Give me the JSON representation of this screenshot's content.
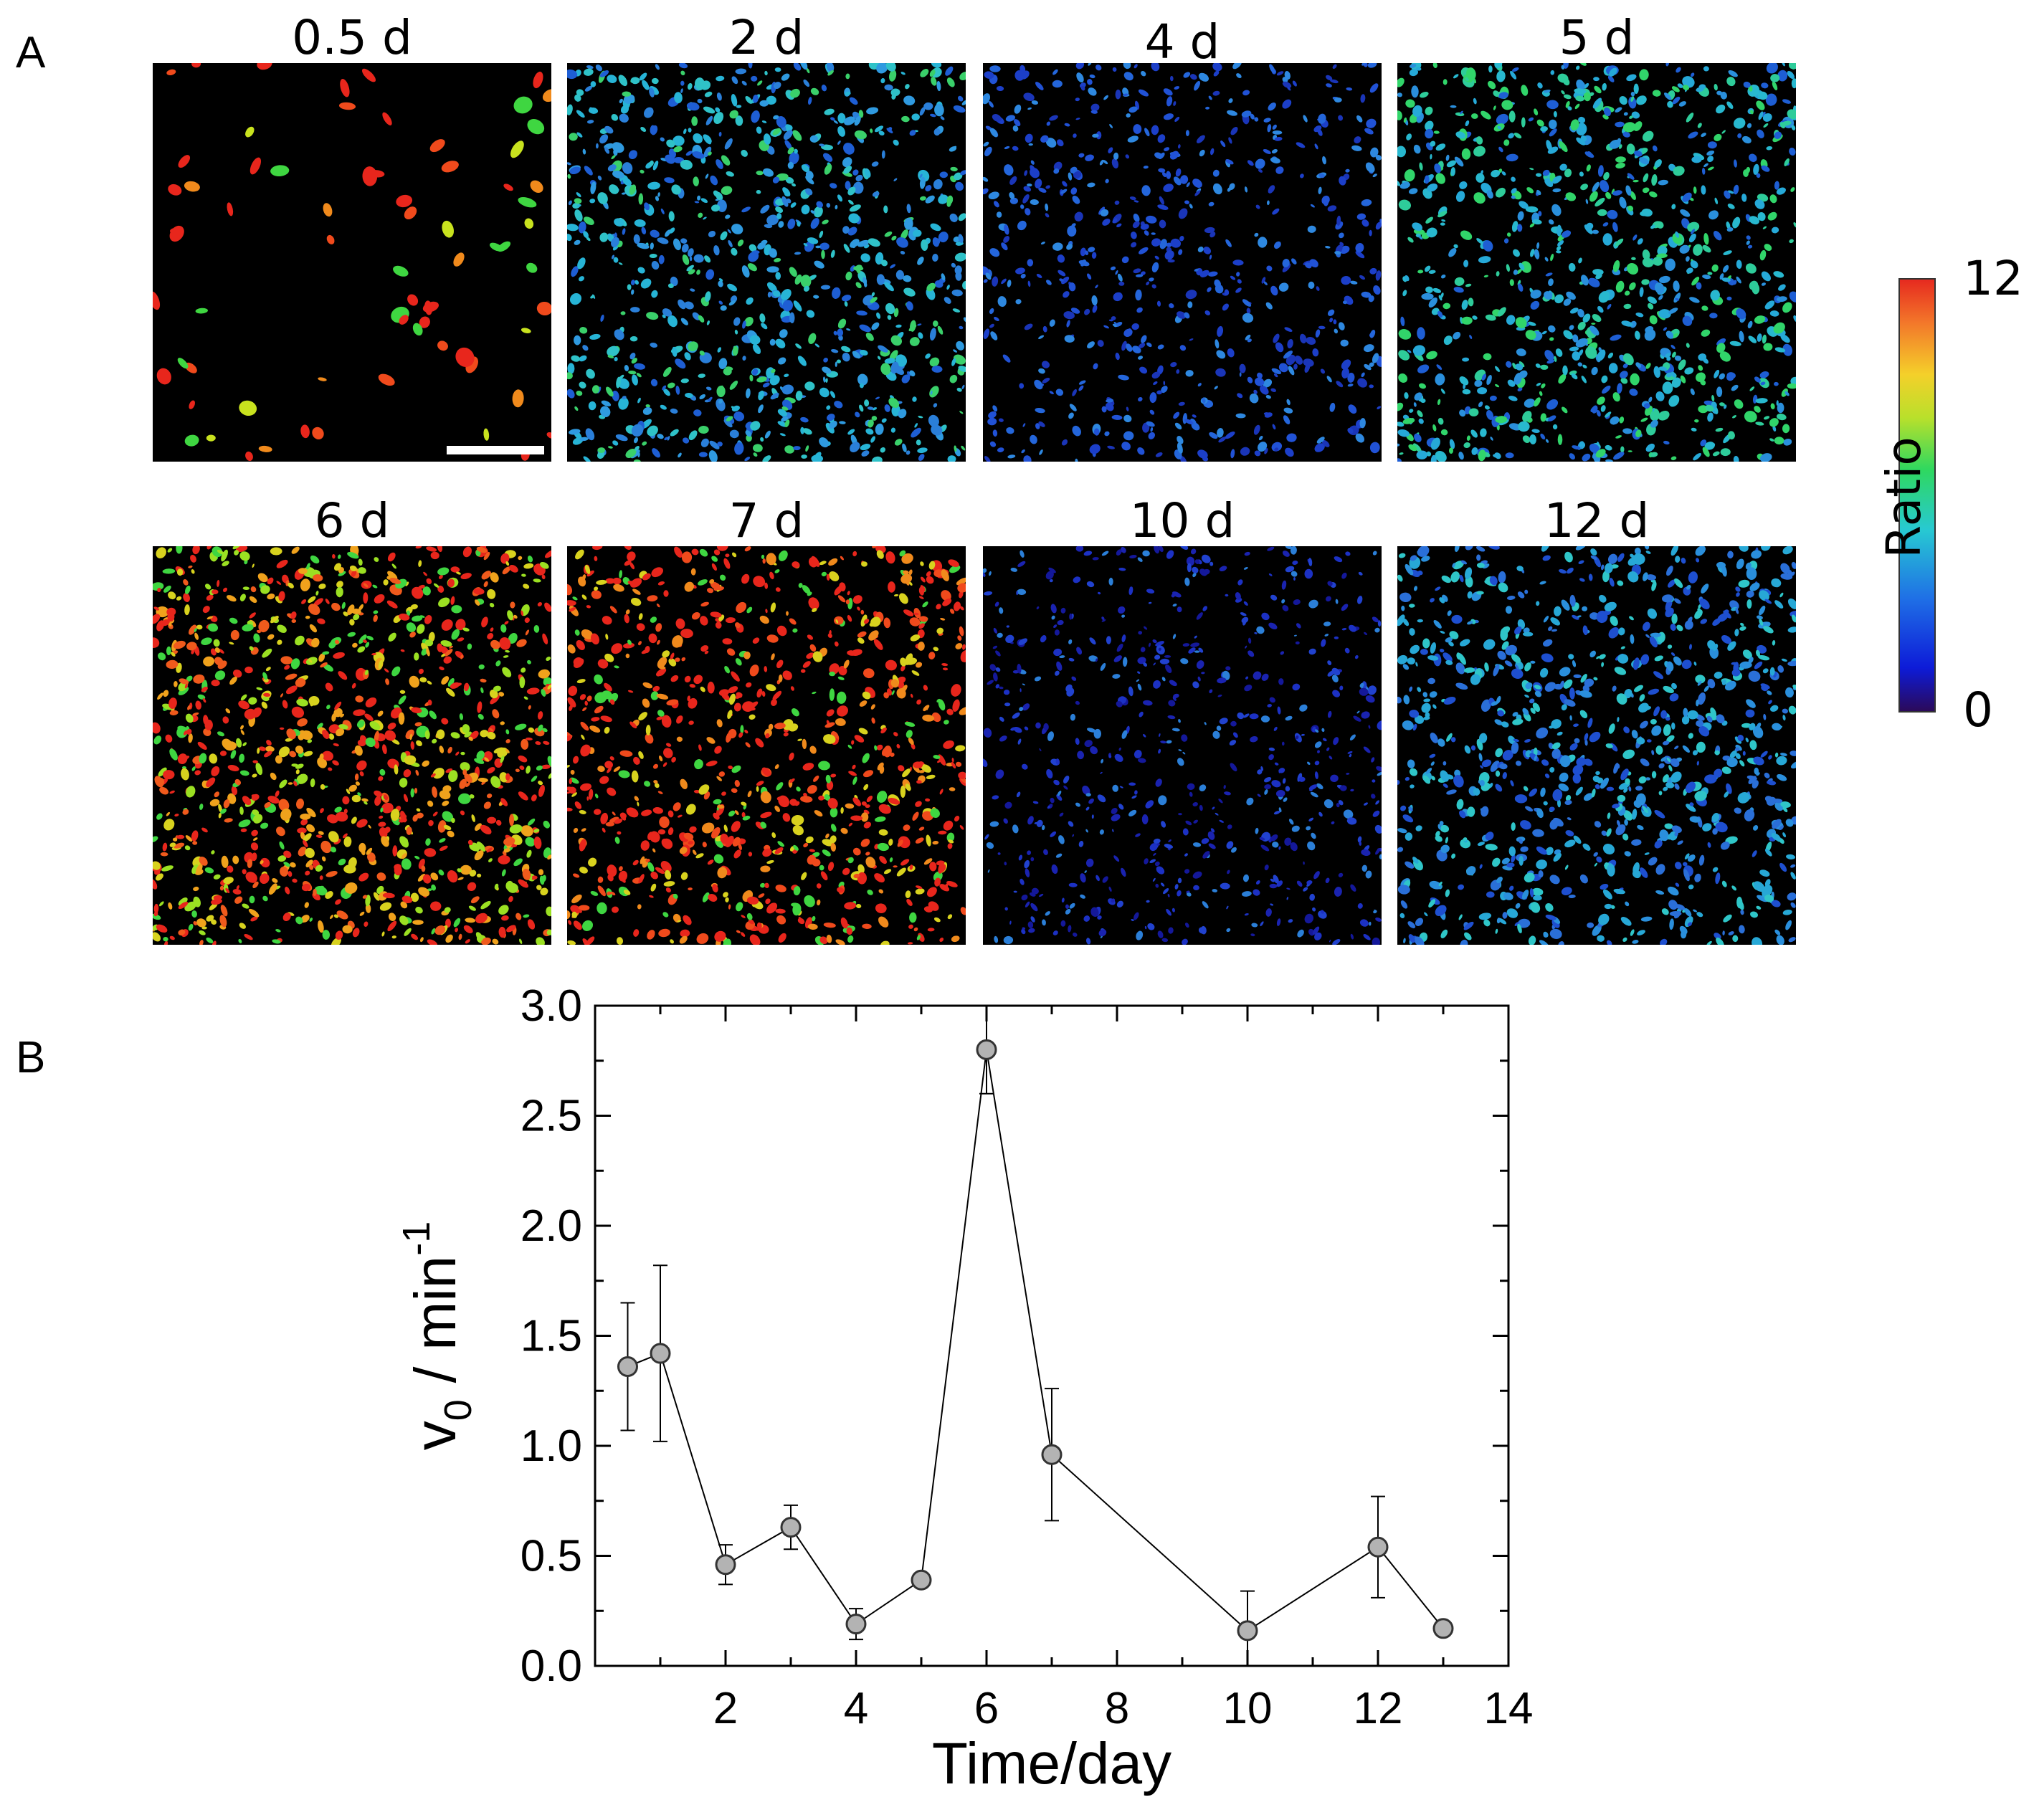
{
  "panel_a": {
    "letter": "A",
    "tiles": [
      {
        "label": "0.5 d",
        "tone": "red"
      },
      {
        "label": "2 d",
        "tone": "cyan-blue"
      },
      {
        "label": "4 d",
        "tone": "blue"
      },
      {
        "label": "5 d",
        "tone": "cyan-green"
      },
      {
        "label": "6 d",
        "tone": "red-yellow-green"
      },
      {
        "label": "7 d",
        "tone": "red"
      },
      {
        "label": "10 d",
        "tone": "dark-blue"
      },
      {
        "label": "12 d",
        "tone": "blue-cyan"
      }
    ],
    "colorbar": {
      "title": "Ratio",
      "max_label": "12",
      "min_label": "0"
    }
  },
  "panel_b": {
    "letter": "B"
  },
  "chart_data": {
    "type": "line",
    "xlabel": "Time/day",
    "ylabel_main": "v",
    "ylabel_sub": "0",
    "ylabel_unit": " / min",
    "ylabel_sup": "-1",
    "xlim": [
      0,
      14
    ],
    "ylim": [
      0,
      3
    ],
    "xticks": [
      "2",
      "4",
      "6",
      "8",
      "10",
      "12",
      "14"
    ],
    "xtick_values": [
      2,
      4,
      6,
      8,
      10,
      12,
      14
    ],
    "yticks": [
      "0.0",
      "0.5",
      "1.0",
      "1.5",
      "2.0",
      "2.5",
      "3.0"
    ],
    "ytick_values": [
      0,
      0.5,
      1.0,
      1.5,
      2.0,
      2.5,
      3.0
    ],
    "grid": false,
    "marker_color": "#b3b3b3",
    "x": [
      0.5,
      1,
      2,
      3,
      4,
      5,
      6,
      7,
      10,
      12,
      13
    ],
    "y": [
      1.36,
      1.42,
      0.46,
      0.63,
      0.19,
      0.39,
      2.8,
      0.96,
      0.16,
      0.54,
      0.17
    ],
    "yerr": [
      0.29,
      0.4,
      0.09,
      0.1,
      0.07,
      0.03,
      0.2,
      0.3,
      0.18,
      0.23,
      0.03
    ]
  }
}
